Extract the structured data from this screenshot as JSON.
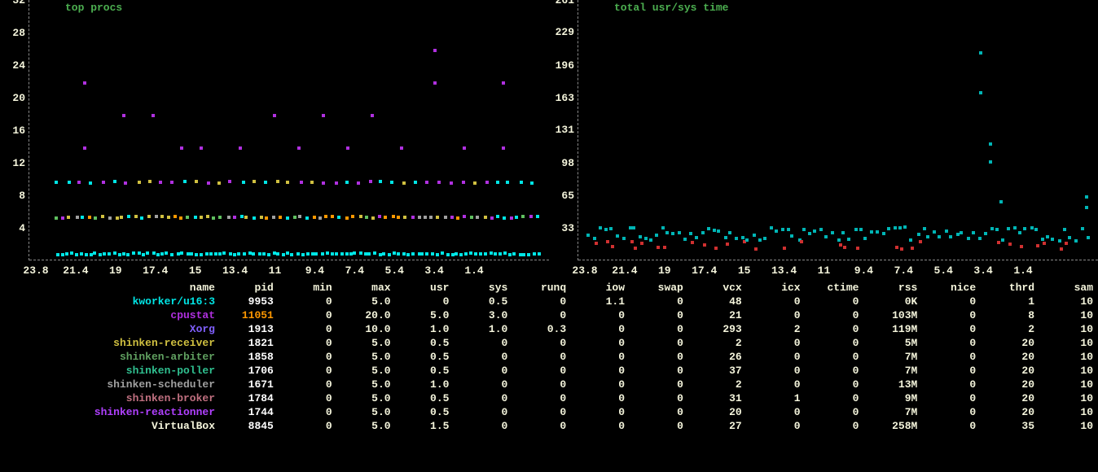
{
  "colors": {
    "background": "#000000",
    "text": "#f5f5dc",
    "title": "#4caf50",
    "axis": "#888888"
  },
  "chart_left": {
    "title": "top procs",
    "y_ticks": [
      32,
      28,
      24,
      20,
      16,
      12,
      8,
      4
    ],
    "y_max": 32,
    "y_min": 0,
    "x_ticks": [
      "23.8",
      "21.4",
      "19",
      "17.4",
      "15",
      "13.4",
      "11",
      "9.4",
      "7.4",
      "5.4",
      "3.4",
      "1.4"
    ],
    "bands": [
      {
        "y": 1.0,
        "color": "#00e5e5",
        "density": 0.95
      },
      {
        "y": 5.5,
        "color_mix": [
          "#00e5e5",
          "#d0c040",
          "#b030e0",
          "#60c060",
          "#a0a0a0",
          "#ff9800"
        ],
        "density": 0.7
      },
      {
        "y": 9.8,
        "color_mix": [
          "#b030e0",
          "#d0c040",
          "#00e5e5"
        ],
        "density": 0.4
      }
    ],
    "sparse_points": [
      {
        "x": 0.06,
        "y": 22,
        "c": "#b030e0"
      },
      {
        "x": 0.06,
        "y": 14,
        "c": "#b030e0"
      },
      {
        "x": 0.14,
        "y": 18,
        "c": "#b030e0"
      },
      {
        "x": 0.2,
        "y": 18,
        "c": "#b030e0"
      },
      {
        "x": 0.26,
        "y": 14,
        "c": "#b030e0"
      },
      {
        "x": 0.3,
        "y": 14,
        "c": "#b030e0"
      },
      {
        "x": 0.38,
        "y": 14,
        "c": "#b030e0"
      },
      {
        "x": 0.45,
        "y": 18,
        "c": "#b030e0"
      },
      {
        "x": 0.5,
        "y": 14,
        "c": "#b030e0"
      },
      {
        "x": 0.55,
        "y": 18,
        "c": "#b030e0"
      },
      {
        "x": 0.6,
        "y": 14,
        "c": "#b030e0"
      },
      {
        "x": 0.65,
        "y": 18,
        "c": "#b030e0"
      },
      {
        "x": 0.71,
        "y": 14,
        "c": "#b030e0"
      },
      {
        "x": 0.78,
        "y": 22,
        "c": "#b030e0"
      },
      {
        "x": 0.78,
        "y": 26,
        "c": "#b030e0"
      },
      {
        "x": 0.84,
        "y": 14,
        "c": "#b030e0"
      },
      {
        "x": 0.92,
        "y": 22,
        "c": "#b030e0"
      },
      {
        "x": 0.92,
        "y": 14,
        "c": "#b030e0"
      }
    ]
  },
  "chart_right": {
    "title": "total usr/sys time",
    "y_ticks": [
      261,
      229,
      196,
      163,
      131,
      98,
      65,
      33
    ],
    "y_max": 261,
    "y_min": 0,
    "x_ticks": [
      "23.8",
      "21.4",
      "19",
      "17.4",
      "15",
      "13.4",
      "11",
      "9.4",
      "7.4",
      "5.4",
      "3.4",
      "1.4"
    ],
    "low_band": {
      "y_base": 25,
      "y_jitter": 14,
      "teal": "#00b5b5",
      "red": "#d03030",
      "density": 0.7
    },
    "high_points": [
      {
        "x": 0.78,
        "y": 210,
        "c": "#00b5b5"
      },
      {
        "x": 0.78,
        "y": 170,
        "c": "#00b5b5"
      },
      {
        "x": 0.8,
        "y": 100,
        "c": "#00b5b5"
      },
      {
        "x": 0.8,
        "y": 118,
        "c": "#00b5b5"
      },
      {
        "x": 0.82,
        "y": 60,
        "c": "#00b5b5"
      },
      {
        "x": 0.99,
        "y": 65,
        "c": "#00b5b5"
      },
      {
        "x": 0.99,
        "y": 55,
        "c": "#00b5b5"
      }
    ]
  },
  "table": {
    "headers": [
      "name",
      "pid",
      "min",
      "max",
      "usr",
      "sys",
      "runq",
      "iow",
      "swap",
      "vcx",
      "icx",
      "ctime",
      "rss",
      "nice",
      "thrd",
      "sam"
    ],
    "rows": [
      {
        "name": "kworker/u16:3",
        "color": "#00e5e5",
        "pid": "9953",
        "pid_color": "#ffffff",
        "vals": [
          "0",
          "5.0",
          "0",
          "0.5",
          "0",
          "1.1",
          "0",
          "48",
          "0",
          "0",
          "0K",
          "0",
          "1",
          "10"
        ]
      },
      {
        "name": "cpustat",
        "color": "#b030e0",
        "pid": "11051",
        "pid_color": "#ff9800",
        "vals": [
          "0",
          "20.0",
          "5.0",
          "3.0",
          "0",
          "0",
          "0",
          "21",
          "0",
          "0",
          "103M",
          "0",
          "8",
          "10"
        ]
      },
      {
        "name": "Xorg",
        "color": "#8060ff",
        "pid": "1913",
        "pid_color": "#ffffff",
        "vals": [
          "0",
          "10.0",
          "1.0",
          "1.0",
          "0.3",
          "0",
          "0",
          "293",
          "2",
          "0",
          "119M",
          "0",
          "2",
          "10"
        ]
      },
      {
        "name": "shinken-receiver",
        "color": "#d0c040",
        "pid": "1821",
        "pid_color": "#ffffff",
        "vals": [
          "0",
          "5.0",
          "0.5",
          "0",
          "0",
          "0",
          "0",
          "2",
          "0",
          "0",
          "5M",
          "0",
          "20",
          "10"
        ]
      },
      {
        "name": "shinken-arbiter",
        "color": "#60a060",
        "pid": "1858",
        "pid_color": "#ffffff",
        "vals": [
          "0",
          "5.0",
          "0.5",
          "0",
          "0",
          "0",
          "0",
          "26",
          "0",
          "0",
          "7M",
          "0",
          "20",
          "10"
        ]
      },
      {
        "name": "shinken-poller",
        "color": "#30c090",
        "pid": "1706",
        "pid_color": "#ffffff",
        "vals": [
          "0",
          "5.0",
          "0.5",
          "0",
          "0",
          "0",
          "0",
          "37",
          "0",
          "0",
          "7M",
          "0",
          "20",
          "10"
        ]
      },
      {
        "name": "shinken-scheduler",
        "color": "#a0a0a0",
        "pid": "1671",
        "pid_color": "#ffffff",
        "vals": [
          "0",
          "5.0",
          "1.0",
          "0",
          "0",
          "0",
          "0",
          "2",
          "0",
          "0",
          "13M",
          "0",
          "20",
          "10"
        ]
      },
      {
        "name": "shinken-broker",
        "color": "#c07080",
        "pid": "1784",
        "pid_color": "#ffffff",
        "vals": [
          "0",
          "5.0",
          "0.5",
          "0",
          "0",
          "0",
          "0",
          "31",
          "1",
          "0",
          "9M",
          "0",
          "20",
          "10"
        ]
      },
      {
        "name": "shinken-reactionner",
        "color": "#b040ff",
        "pid": "1744",
        "pid_color": "#ffffff",
        "vals": [
          "0",
          "5.0",
          "0.5",
          "0",
          "0",
          "0",
          "0",
          "20",
          "0",
          "0",
          "7M",
          "0",
          "20",
          "10"
        ]
      },
      {
        "name": "VirtualBox",
        "color": "#f5f5dc",
        "pid": "8845",
        "pid_color": "#ffffff",
        "vals": [
          "0",
          "5.0",
          "1.5",
          "0",
          "0",
          "0",
          "0",
          "27",
          "0",
          "0",
          "258M",
          "0",
          "35",
          "10"
        ]
      }
    ]
  }
}
